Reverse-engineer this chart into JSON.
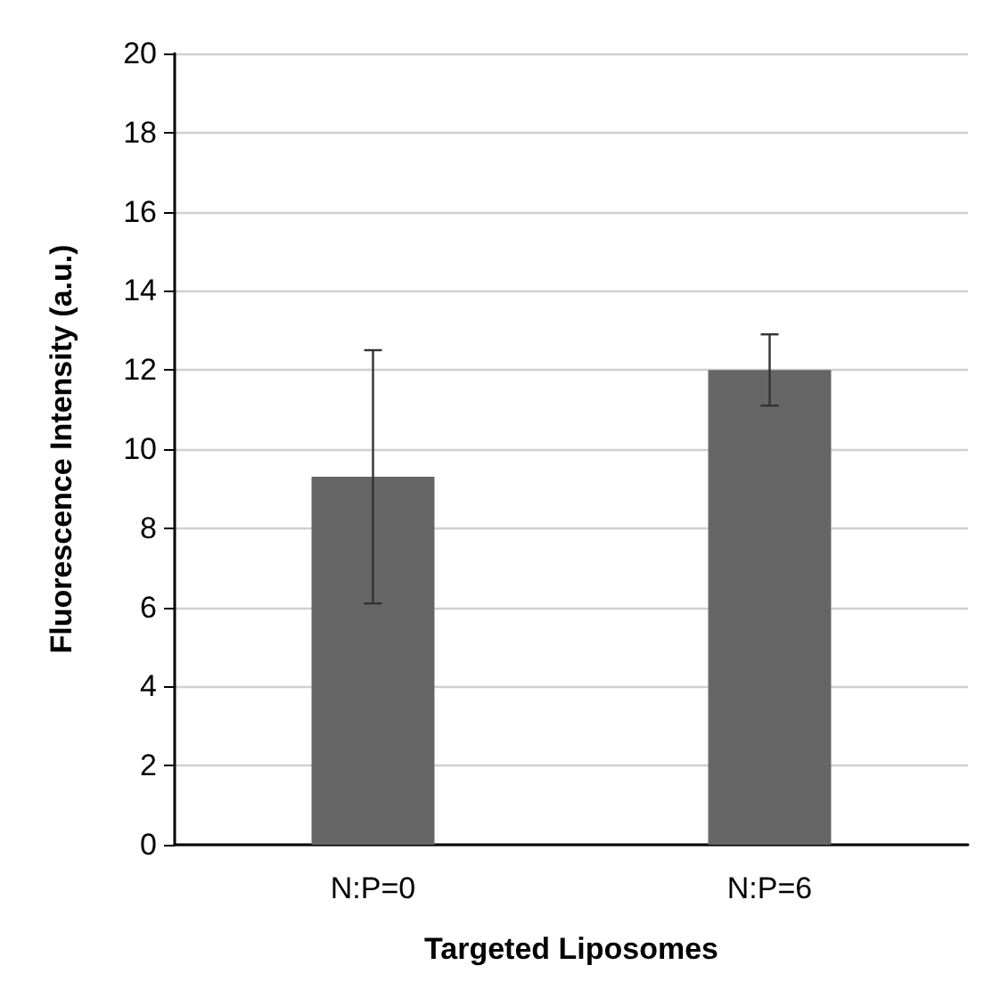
{
  "chart_data": {
    "type": "bar",
    "xlabel": "Targeted Liposomes",
    "ylabel": "Fluorescence Intensity (a.u.)",
    "categories": [
      "N:P=0",
      "N:P=6"
    ],
    "values": [
      9.3,
      12.0
    ],
    "errors": [
      3.2,
      0.9
    ],
    "color": "#666666",
    "ylim": [
      0,
      20
    ],
    "yticks": [
      0,
      2,
      4,
      6,
      8,
      10,
      12,
      14,
      16,
      18,
      20
    ],
    "grid": "y"
  }
}
